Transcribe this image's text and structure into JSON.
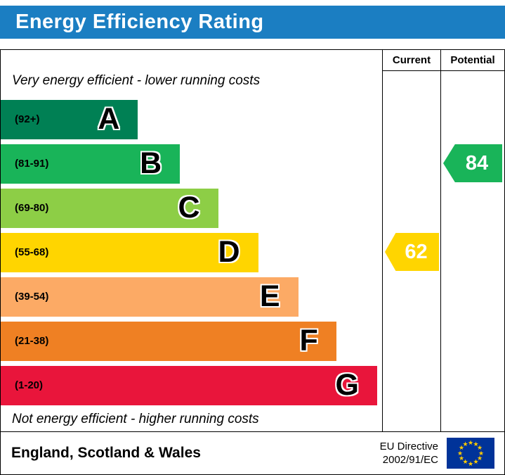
{
  "title": "Energy Efficiency Rating",
  "columns": {
    "current": "Current",
    "potential": "Potential"
  },
  "notes": {
    "top": "Very energy efficient - lower running costs",
    "bottom": "Not energy efficient - higher running costs"
  },
  "footer": {
    "region": "England, Scotland & Wales",
    "directive_line1": "EU Directive",
    "directive_line2": "2002/91/EC"
  },
  "colors": {
    "header_bg": "#1b7ec2",
    "current_arrow": "#ffd500",
    "potential_arrow": "#19b459",
    "flag_blue": "#003399",
    "flag_star": "#ffcc00"
  },
  "chart_data": {
    "type": "bar",
    "title": "Energy Efficiency Rating",
    "bands": [
      {
        "label": "A",
        "range": "(92+)",
        "color": "#008054",
        "width_pct": 36
      },
      {
        "label": "B",
        "range": "(81-91)",
        "color": "#19b459",
        "width_pct": 47
      },
      {
        "label": "C",
        "range": "(69-80)",
        "color": "#8dce46",
        "width_pct": 57
      },
      {
        "label": "D",
        "range": "(55-68)",
        "color": "#ffd500",
        "width_pct": 67.5
      },
      {
        "label": "E",
        "range": "(39-54)",
        "color": "#fcaa65",
        "width_pct": 78
      },
      {
        "label": "F",
        "range": "(21-38)",
        "color": "#ef8023",
        "width_pct": 88
      },
      {
        "label": "G",
        "range": "(1-20)",
        "color": "#e9153b",
        "width_pct": 98.7
      }
    ],
    "current": {
      "value": 62,
      "band": "D"
    },
    "potential": {
      "value": 84,
      "band": "B"
    }
  }
}
